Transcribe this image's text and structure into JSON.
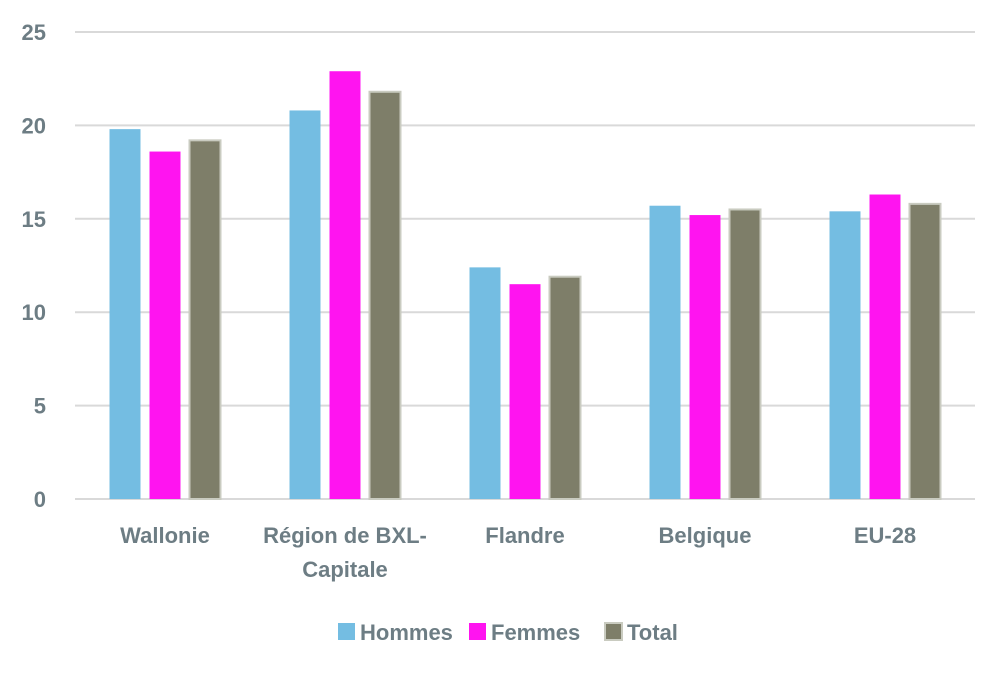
{
  "chart_data": {
    "type": "bar",
    "title": "",
    "xlabel": "",
    "ylabel": "",
    "ylim": [
      0,
      25
    ],
    "yticks": [
      "0",
      "5",
      "10",
      "15",
      "20",
      "25"
    ],
    "grid": true,
    "legend_position": "bottom",
    "categories": [
      [
        "Wallonie"
      ],
      [
        "Région de BXL-",
        "Capitale"
      ],
      [
        "Flandre"
      ],
      [
        "Belgique"
      ],
      [
        "EU-28"
      ]
    ],
    "series": [
      {
        "name": "Hommes",
        "color": "#74bde2",
        "values": [
          19.8,
          20.8,
          12.4,
          15.7,
          15.4
        ]
      },
      {
        "name": "Femmes",
        "color": "#ff14f0",
        "values": [
          18.6,
          22.9,
          11.5,
          15.2,
          16.3
        ]
      },
      {
        "name": "Total",
        "color": "#7e7e69",
        "values": [
          19.2,
          21.8,
          11.9,
          15.5,
          15.8
        ]
      }
    ]
  }
}
